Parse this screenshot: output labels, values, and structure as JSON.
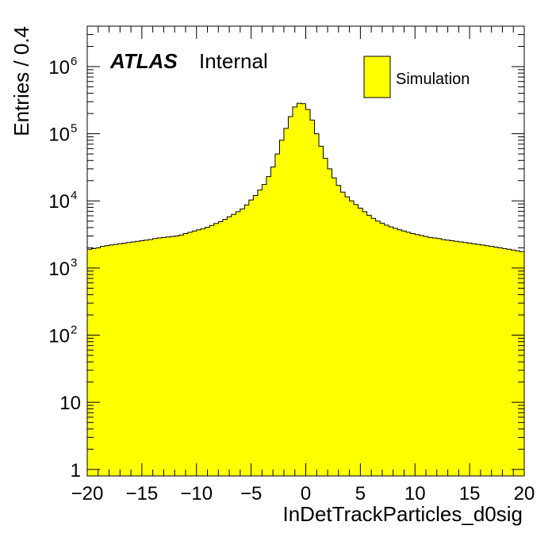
{
  "chart_data": {
    "type": "bar",
    "title": "",
    "xlabel": "InDetTrackParticles_d0sig",
    "ylabel": "Entries / 0.4",
    "xlim": [
      -20,
      20
    ],
    "ylim": [
      0.8,
      4000000
    ],
    "y_scale": "log",
    "bin_width": 0.4,
    "grid": false,
    "legend_position": "top-right",
    "colors": {
      "fill": "#ffff00",
      "line": "#000000",
      "background": "#ffffff"
    },
    "annotation": {
      "experiment": "ATLAS",
      "status": "Internal"
    },
    "x_ticks": [
      {
        "value": -20,
        "label": "−20"
      },
      {
        "value": -15,
        "label": "−15"
      },
      {
        "value": -10,
        "label": "−10"
      },
      {
        "value": -5,
        "label": "−5"
      },
      {
        "value": 0,
        "label": "0"
      },
      {
        "value": 5,
        "label": "5"
      },
      {
        "value": 10,
        "label": "10"
      },
      {
        "value": 15,
        "label": "15"
      },
      {
        "value": 20,
        "label": "20"
      }
    ],
    "y_ticks": [
      {
        "value": 1,
        "base": "1",
        "exp": ""
      },
      {
        "value": 10,
        "base": "10",
        "exp": ""
      },
      {
        "value": 100,
        "base": "10",
        "exp": "2"
      },
      {
        "value": 1000,
        "base": "10",
        "exp": "3"
      },
      {
        "value": 10000,
        "base": "10",
        "exp": "4"
      },
      {
        "value": 100000,
        "base": "10",
        "exp": "5"
      },
      {
        "value": 1000000,
        "base": "10",
        "exp": "6"
      }
    ],
    "series": [
      {
        "name": "Simulation",
        "bin_low_edges": [
          -20.0,
          -19.6,
          -19.2,
          -18.8,
          -18.4,
          -18.0,
          -17.6,
          -17.2,
          -16.8,
          -16.4,
          -16.0,
          -15.6,
          -15.2,
          -14.8,
          -14.4,
          -14.0,
          -13.6,
          -13.2,
          -12.8,
          -12.4,
          -12.0,
          -11.6,
          -11.2,
          -10.8,
          -10.4,
          -10.0,
          -9.6,
          -9.2,
          -8.8,
          -8.4,
          -8.0,
          -7.6,
          -7.2,
          -6.8,
          -6.4,
          -6.0,
          -5.6,
          -5.2,
          -4.8,
          -4.4,
          -4.0,
          -3.6,
          -3.2,
          -2.8,
          -2.4,
          -2.0,
          -1.6,
          -1.2,
          -0.8,
          -0.4,
          0.0,
          0.4,
          0.8,
          1.2,
          1.6,
          2.0,
          2.4,
          2.8,
          3.2,
          3.6,
          4.0,
          4.4,
          4.8,
          5.2,
          5.6,
          6.0,
          6.4,
          6.8,
          7.2,
          7.6,
          8.0,
          8.4,
          8.8,
          9.2,
          9.6,
          10.0,
          10.4,
          10.8,
          11.2,
          11.6,
          12.0,
          12.4,
          12.8,
          13.2,
          13.6,
          14.0,
          14.4,
          14.8,
          15.2,
          15.6,
          16.0,
          16.4,
          16.8,
          17.2,
          17.6,
          18.0,
          18.4,
          18.8,
          19.2,
          19.6
        ],
        "values": [
          1900,
          1950,
          2000,
          2100,
          2150,
          2200,
          2250,
          2300,
          2350,
          2400,
          2450,
          2500,
          2550,
          2600,
          2650,
          2750,
          2800,
          2850,
          2900,
          2950,
          3000,
          3100,
          3250,
          3400,
          3550,
          3700,
          3850,
          4050,
          4300,
          4600,
          4900,
          5300,
          5800,
          6300,
          6900,
          7600,
          8700,
          10300,
          12000,
          14500,
          17500,
          23000,
          32000,
          50000,
          80000,
          120000,
          180000,
          250000,
          285000,
          280000,
          230000,
          160000,
          100000,
          65000,
          43000,
          30000,
          22000,
          17000,
          13500,
          11500,
          10000,
          8800,
          7800,
          6900,
          6100,
          5500,
          5000,
          4650,
          4350,
          4100,
          3900,
          3700,
          3550,
          3400,
          3250,
          3150,
          3050,
          2950,
          2850,
          2800,
          2750,
          2650,
          2600,
          2550,
          2500,
          2450,
          2400,
          2350,
          2300,
          2250,
          2200,
          2150,
          2100,
          2050,
          2000,
          1950,
          1900,
          1850,
          1800,
          1750
        ]
      }
    ]
  }
}
